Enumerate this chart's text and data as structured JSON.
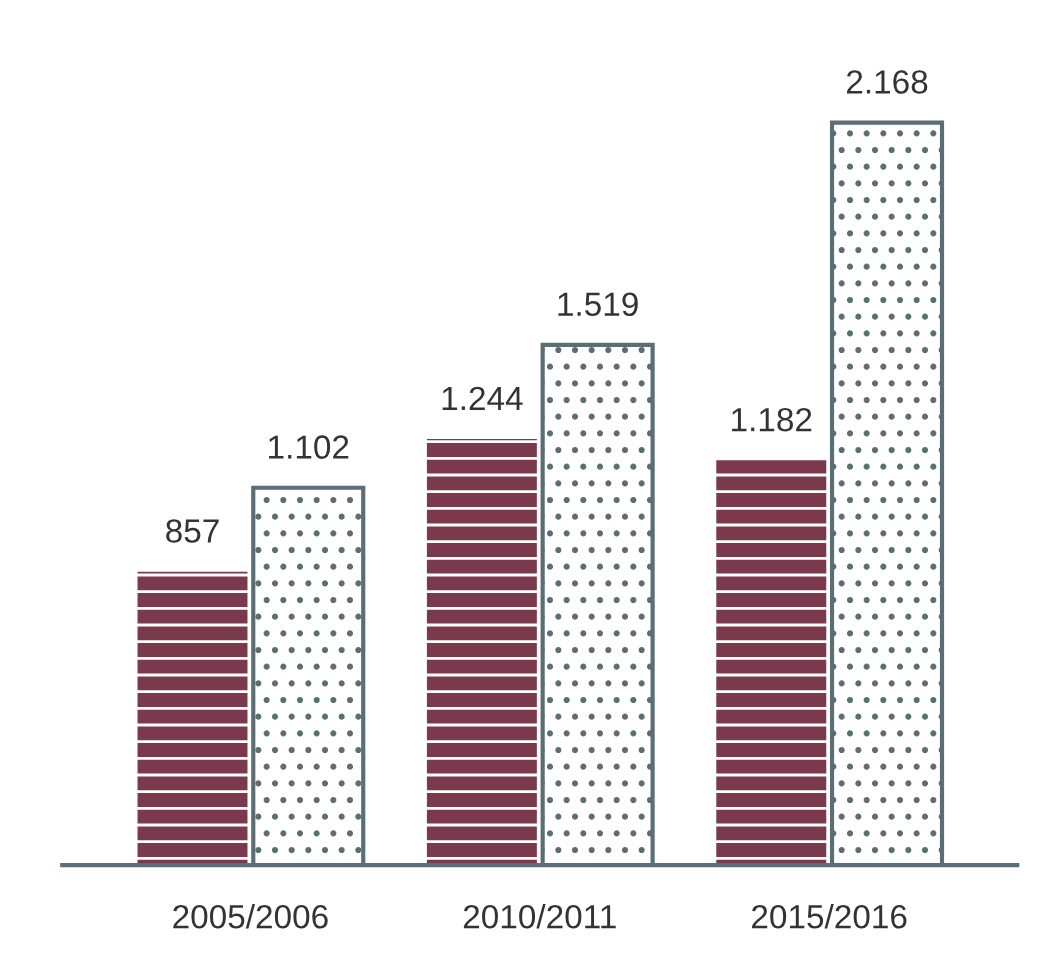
{
  "chart_data": {
    "type": "bar",
    "categories": [
      "2005/2006",
      "2010/2011",
      "2015/2016"
    ],
    "series": [
      {
        "color": "#7b3a4c",
        "values": [
          857,
          1244,
          1182
        ],
        "value_labels": [
          "857",
          "1.244",
          "1.182"
        ]
      },
      {
        "color": "#5b6e76",
        "values": [
          1102,
          1519,
          2168
        ],
        "value_labels": [
          "1.102",
          "1.519",
          "2.168"
        ]
      }
    ],
    "grid": false,
    "legend": false,
    "tick_labels": "x"
  }
}
